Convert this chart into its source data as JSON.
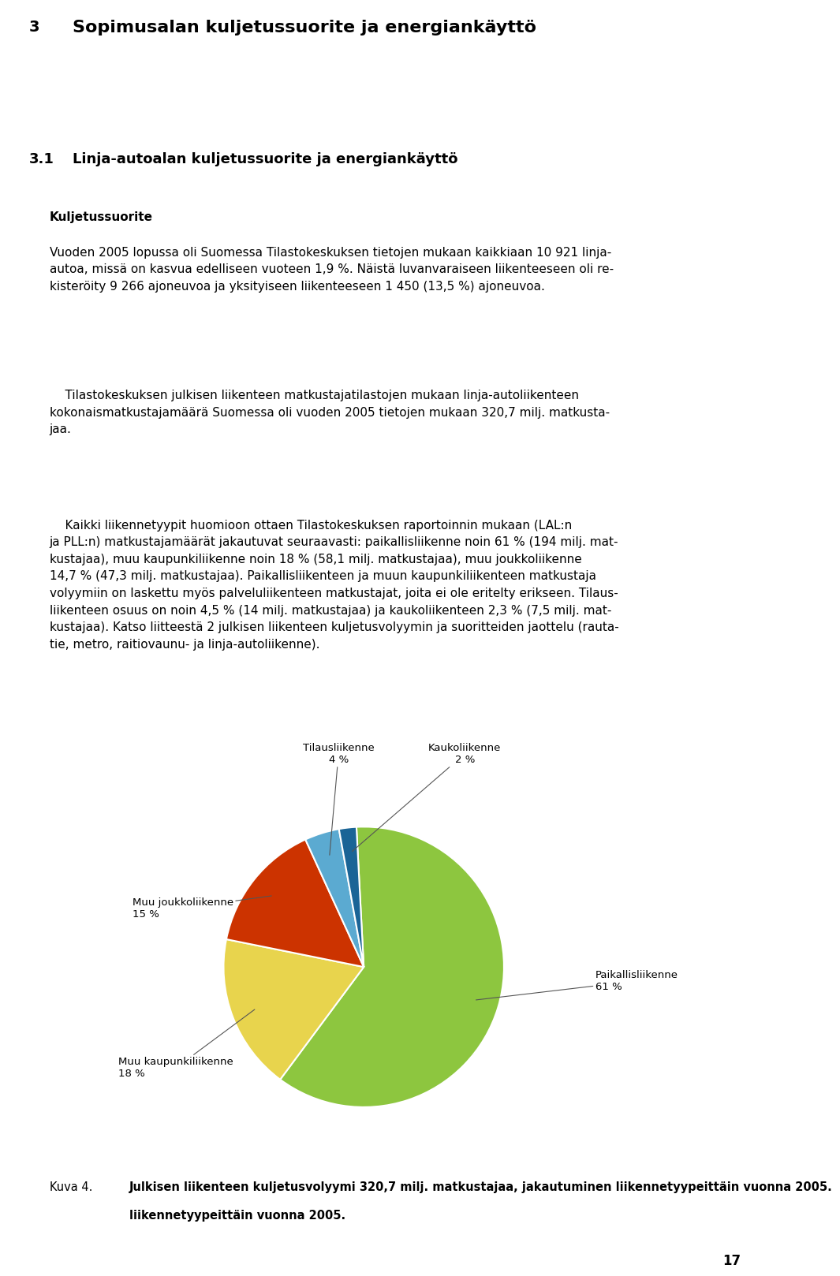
{
  "page_title_number": "3",
  "page_title": "Sopimusalan kuljetussuorite ja energiankäyttö",
  "section_number": "3.1",
  "section_title": "Linja-autoalan kuljetussuorite ja energiankäyttö",
  "heading_bold": "Kuljetussuorite",
  "para1": "Vuoden 2005 lopussa oli Suomessa Tilastokeskuksen tietojen mukaan kaikkiaan 10 921 linja-autoa, missä on kasvua edelliseen vuoteen 1,9 %. Näistä luvanvaraiseen liikenteeseen oli re-kisteröity 9 266 ajoneuvoa ja yksityiseen liikenteeseen 1 450 (13,5 %) ajoneuvoa.",
  "para2_indent": "    Tilastokeskuksen julkisen liikenteen matkustajatilastojen mukaan linja-autoliikenteen kokonaismatkustajamäärä Suomessa oli vuoden 2005 tietojen mukaan 320,7 milj. matkustajaa.",
  "para3_indent": "    Kaikki liikennetyypit huomioon ottaen Tilastokeskuksen raportoinnin mukaan (LAL:n ja PLL:n) matkustajamäärät jakautuvat seuraavasti: paikallisliikenne noin 61 % (194 milj. matkustajaa), muu kaupunkiliikenne noin 18 % (58,1 milj. matkustajaa), muu joukkoliikenne 14,7 % (47,3 milj. matkustajaa). Paikallisliikenteen ja muun kaupunkiliikenteen matkustaja volyymiin on laskettu myös palveluliikenteen matkustajat, joita ei ole eritelty erikseen. Tilausliikenteen osuus on noin 4,5 % (14 milj. matkustajaa) ja kaukoliikenteen 2,3 % (7,5 milj. matkustajaa). Katso liitteestä 2 julkisen liikenteen kuljetusvolyymin ja suoritteiden jaottelu (rautatie, metro, raitiovaunu- ja linja-autoliikenne).",
  "pie_values": [
    61,
    18,
    15,
    4,
    2
  ],
  "pie_colors": [
    "#8dc63f",
    "#e8d44d",
    "#cc3300",
    "#5baad1",
    "#1a6496"
  ],
  "pie_label_names": [
    "Paikallisliikenne",
    "Muu kaupunkiliikenne",
    "Muu joukkoliikenne",
    "Tilausliikenne",
    "Kaukoliikenne"
  ],
  "pie_label_pcts": [
    "61 %",
    "18 %",
    "15 %",
    "4 %",
    "2 %"
  ],
  "caption_label": "Kuva 4.",
  "caption_text": "Julkisen liikenteen kuljetusvolyymi 320,7 milj. matkustajaa, jakautuminen liikennetyypeittäin vuonna 2005.",
  "page_number": "17",
  "header_bar_color": "#cccccc",
  "background_color": "#ffffff"
}
